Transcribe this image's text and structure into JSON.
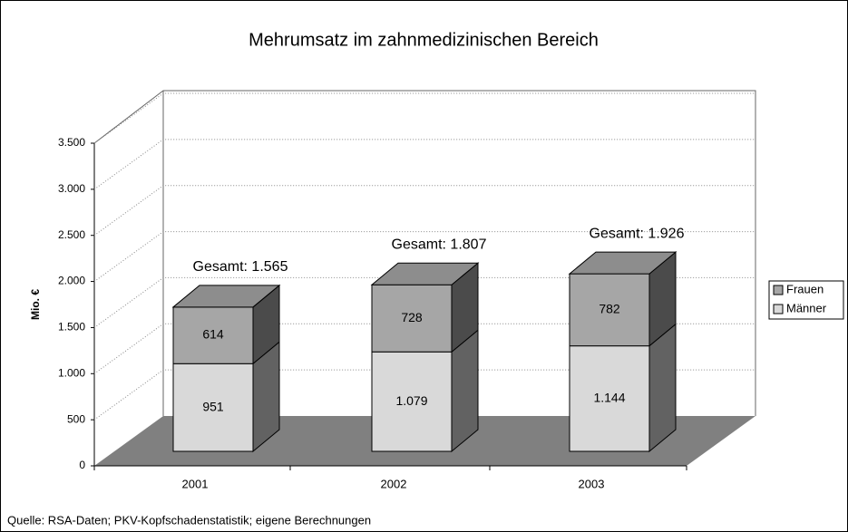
{
  "chart_data": {
    "type": "bar3d_stacked",
    "title": "Mehrumsatz im zahnmedizinischen Bereich",
    "ylabel": "Mio. €",
    "source": "Quelle: RSA-Daten; PKV-Kopfschadenstatistik; eigene Berechnungen",
    "categories": [
      "2001",
      "2002",
      "2003"
    ],
    "series": [
      {
        "name": "Männer",
        "color": "#d9d9d9",
        "values": [
          951,
          1079,
          1144
        ],
        "value_labels": [
          "951",
          "1.079",
          "1.144"
        ]
      },
      {
        "name": "Frauen",
        "color": "#a6a6a6",
        "values": [
          614,
          728,
          782
        ],
        "value_labels": [
          "614",
          "728",
          "782"
        ]
      }
    ],
    "annotations": [
      "Gesamt: 1.565",
      "Gesamt: 1.807",
      "Gesamt: 1.926"
    ],
    "ylim": [
      0,
      3500
    ],
    "yticks": [
      0,
      500,
      {
        "value": 1000,
        "label": "1.000"
      },
      {
        "value": 1500,
        "label": "1.500"
      },
      {
        "value": 2000,
        "label": "2.000"
      },
      {
        "value": 2500,
        "label": "2.500"
      },
      {
        "value": 3000,
        "label": "3.000"
      },
      {
        "value": 3500,
        "label": "3.500"
      }
    ],
    "grid": true,
    "legend": "right"
  }
}
